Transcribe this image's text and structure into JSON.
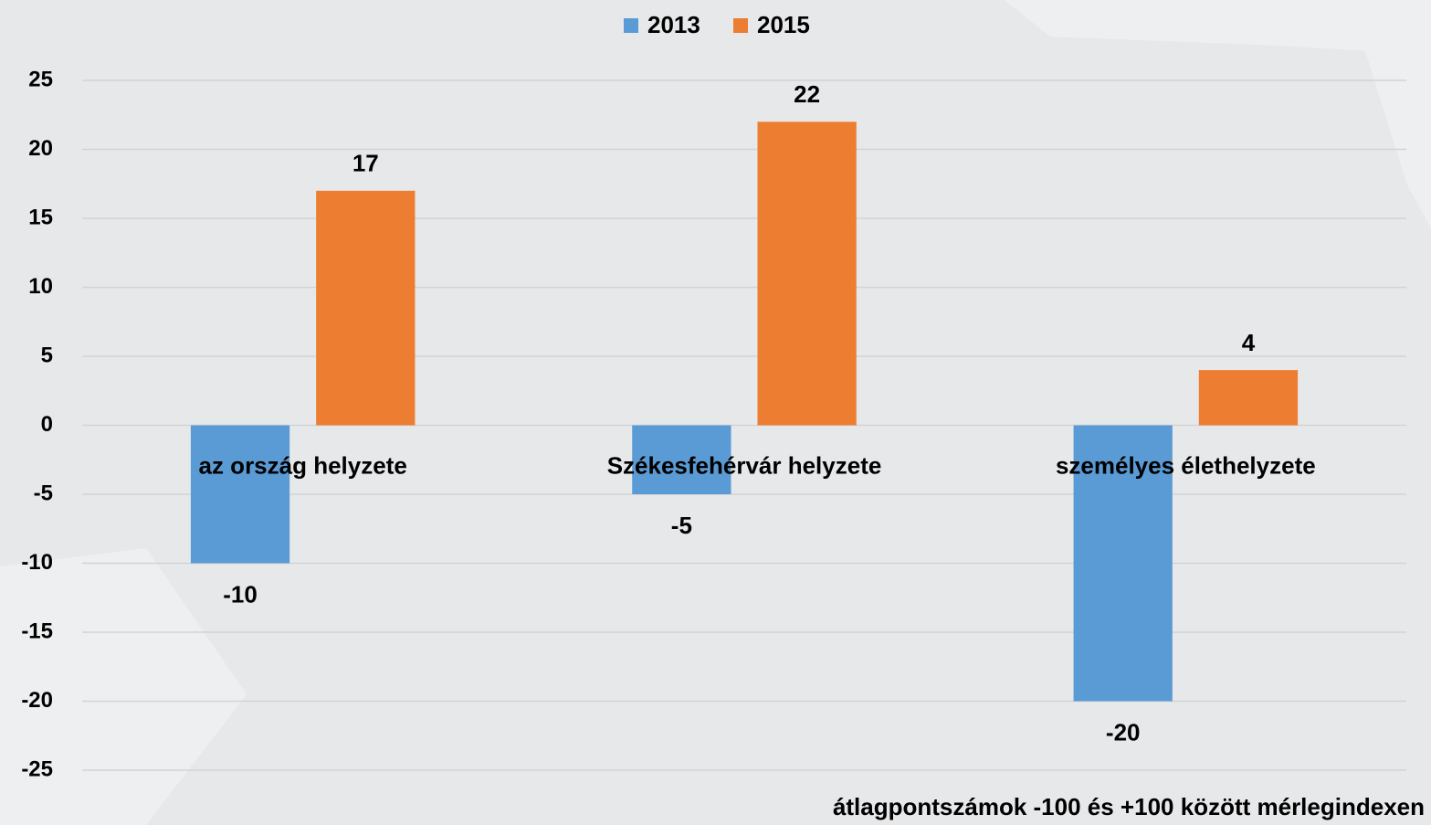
{
  "chart_data": {
    "type": "bar",
    "categories": [
      "az ország helyzete",
      "Székesfehérvár helyzete",
      "személyes élethelyzete"
    ],
    "series": [
      {
        "name": "2013",
        "color": "#5b9bd5",
        "values": [
          -10,
          -5,
          -20
        ]
      },
      {
        "name": "2015",
        "color": "#ed7d31",
        "values": [
          17,
          22,
          4
        ]
      }
    ],
    "ylim": [
      -25,
      25
    ],
    "yticks": [
      -25,
      -20,
      -15,
      -10,
      -5,
      0,
      5,
      10,
      15,
      20,
      25
    ],
    "grid": true,
    "legend": "top",
    "annotation": "átlagpontszámok -100 és +100 között mérlegindexen"
  }
}
